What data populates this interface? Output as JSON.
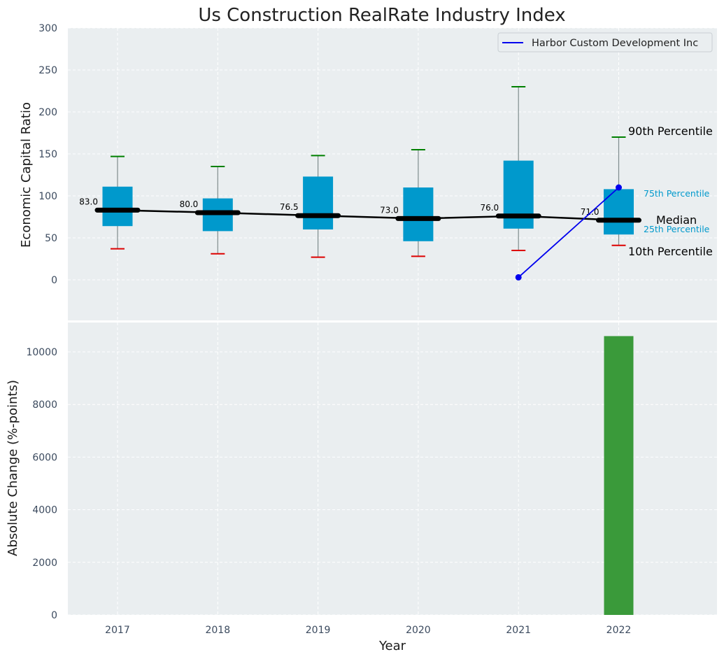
{
  "chart_data": {
    "type": "box",
    "title": "Us Construction RealRate Industry Index",
    "xlabel": "Year",
    "categories": [
      "2017",
      "2018",
      "2019",
      "2020",
      "2021",
      "2022"
    ],
    "top_panel": {
      "ylabel": "Economic Capital Ratio",
      "ylim": [
        -50,
        300
      ],
      "yticks": [
        0,
        50,
        100,
        150,
        200,
        250,
        300
      ],
      "grid": true,
      "boxes": [
        {
          "year": "2017",
          "p10": 37,
          "p25": 64,
          "median": 83,
          "p75": 111,
          "p90": 147
        },
        {
          "year": "2018",
          "p10": 31,
          "p25": 58,
          "median": 80,
          "p75": 97,
          "p90": 135
        },
        {
          "year": "2019",
          "p10": 27,
          "p25": 60,
          "median": 76.5,
          "p75": 123,
          "p90": 148
        },
        {
          "year": "2020",
          "p10": 28,
          "p25": 46,
          "median": 73,
          "p75": 110,
          "p90": 155
        },
        {
          "year": "2021",
          "p10": 35,
          "p25": 61,
          "median": 76,
          "p75": 142,
          "p90": 230
        },
        {
          "year": "2022",
          "p10": 41,
          "p25": 54,
          "median": 71,
          "p75": 108,
          "p90": 170
        }
      ],
      "median_labels": [
        "83.0",
        "80.0",
        "76.5",
        "73.0",
        "76.0",
        "71.0"
      ],
      "series": [
        {
          "name": "Harbor Custom Development Inc",
          "x": [
            "2021",
            "2022"
          ],
          "values": [
            3,
            110
          ],
          "color": "#0000ee"
        }
      ],
      "legend_position": "top-right",
      "percentile_labels": {
        "p90": "90th Percentile",
        "p75": "75th Percentile",
        "median": "Median",
        "p25": "25th Percentile",
        "p10": "10th Percentile"
      }
    },
    "bottom_panel": {
      "type": "bar",
      "ylabel": "Absolute Change (%-points)",
      "ylim": [
        0,
        11000
      ],
      "yticks": [
        0,
        2000,
        4000,
        6000,
        8000,
        10000
      ],
      "grid": true,
      "values": [
        {
          "year": "2022",
          "value": 10600
        }
      ],
      "color": "#3a9a3a"
    },
    "colors": {
      "box": "#0099cc",
      "p90_cap": "#008000",
      "p10_cap": "#dd0000",
      "whisker": "#7f8c8d",
      "median": "#000000",
      "panel_bg": "#eaeef0"
    }
  }
}
